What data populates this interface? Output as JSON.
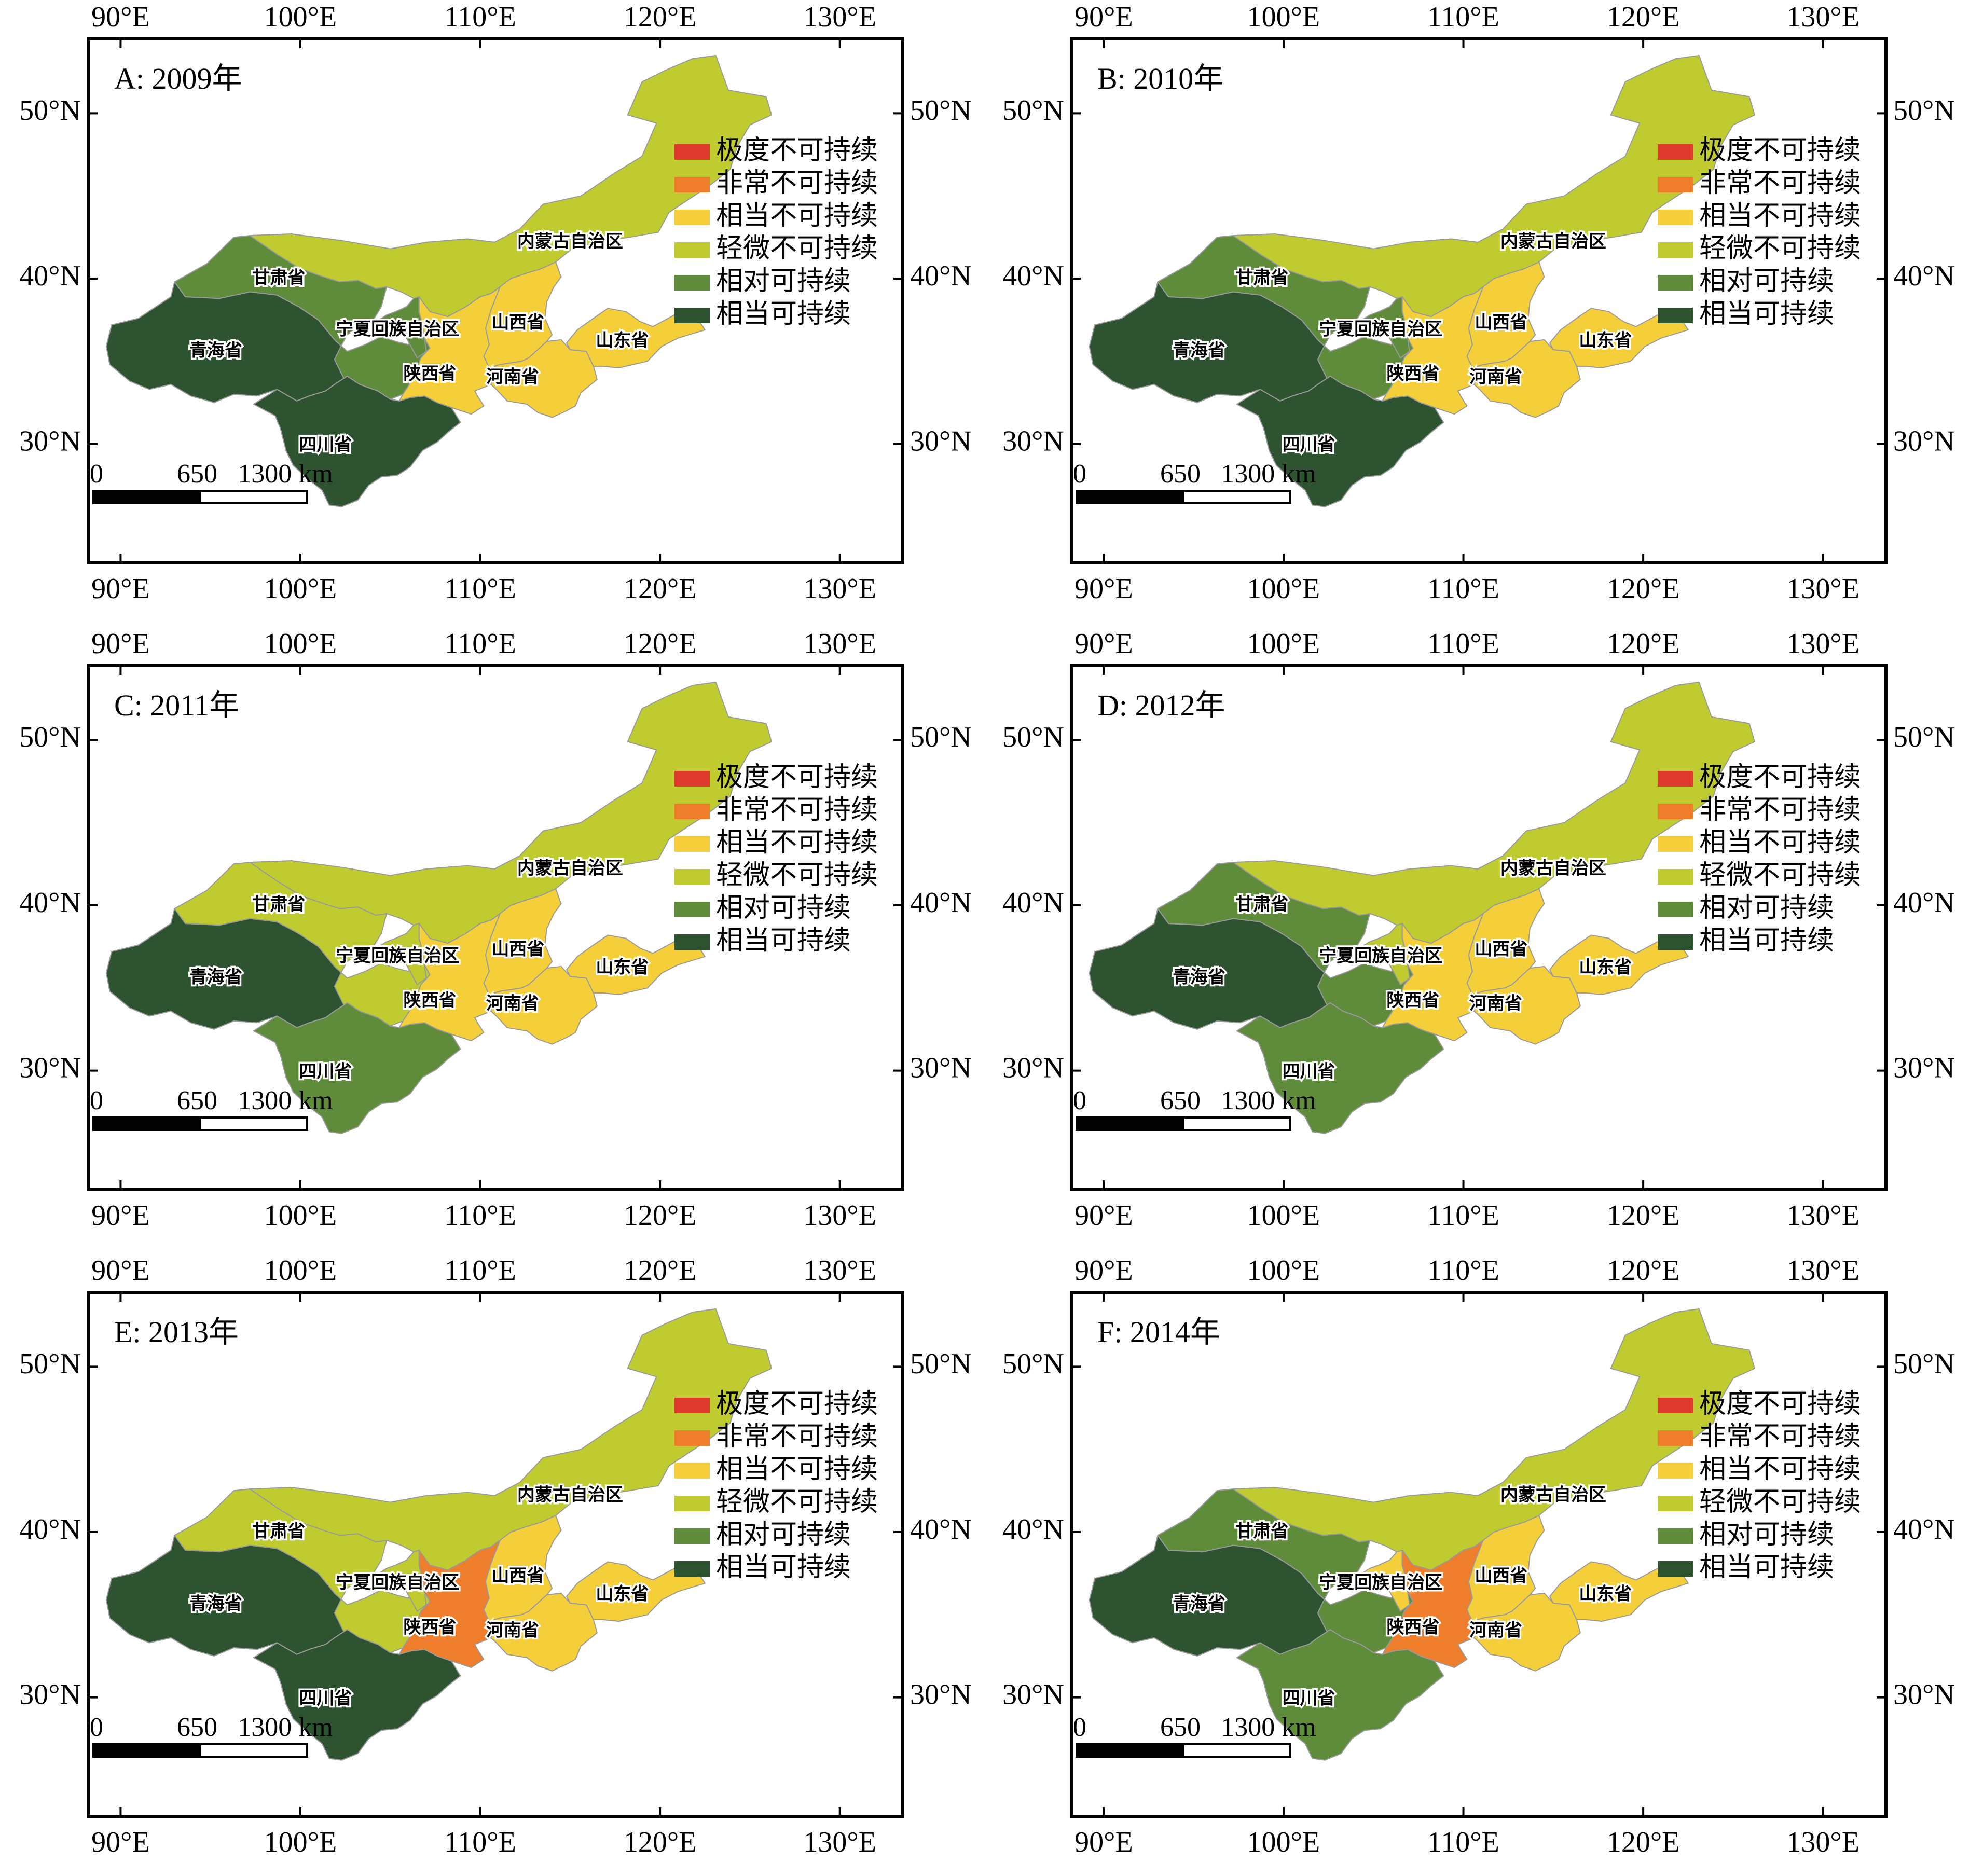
{
  "legend": {
    "items": [
      {
        "label": "极度不可持续",
        "color": "#e03a2f"
      },
      {
        "label": "非常不可持续",
        "color": "#ee7d2c"
      },
      {
        "label": "相当不可持续",
        "color": "#f5cf3a"
      },
      {
        "label": "轻微不可持续",
        "color": "#bfcb2e"
      },
      {
        "label": "相对可持续",
        "color": "#5e8c3a"
      },
      {
        "label": "相当可持续",
        "color": "#2e5330"
      }
    ]
  },
  "scalebar": {
    "labels": [
      "0",
      "650",
      "1300 km"
    ]
  },
  "axes": {
    "lon_labels": [
      "90°E",
      "100°E",
      "110°E",
      "120°E",
      "130°E"
    ],
    "lat_labels": [
      "50°N",
      "40°N",
      "30°N"
    ]
  },
  "province_names": {
    "neimenggu": "内蒙古自治区",
    "gansu": "甘肃省",
    "qinghai": "青海省",
    "ningxia": "宁夏回族自治区",
    "shanxi": "山西省",
    "shaanxi": "陕西省",
    "henan": "河南省",
    "shandong": "山东省",
    "sichuan": "四川省"
  },
  "panels": [
    {
      "title": "A: 2009年",
      "levels": {
        "neimenggu": 3,
        "gansu": 4,
        "qinghai": 5,
        "ningxia": 4,
        "shanxi": 2,
        "shaanxi": 2,
        "henan": 2,
        "shandong": 2,
        "sichuan": 5
      }
    },
    {
      "title": "B: 2010年",
      "levels": {
        "neimenggu": 3,
        "gansu": 4,
        "qinghai": 5,
        "ningxia": 4,
        "shanxi": 2,
        "shaanxi": 2,
        "henan": 2,
        "shandong": 2,
        "sichuan": 5
      }
    },
    {
      "title": "C: 2011年",
      "levels": {
        "neimenggu": 3,
        "gansu": 3,
        "qinghai": 5,
        "ningxia": 3,
        "shanxi": 2,
        "shaanxi": 2,
        "henan": 2,
        "shandong": 2,
        "sichuan": 4
      }
    },
    {
      "title": "D: 2012年",
      "levels": {
        "neimenggu": 3,
        "gansu": 4,
        "qinghai": 5,
        "ningxia": 3,
        "shanxi": 2,
        "shaanxi": 2,
        "henan": 2,
        "shandong": 2,
        "sichuan": 4
      }
    },
    {
      "title": "E: 2013年",
      "levels": {
        "neimenggu": 3,
        "gansu": 3,
        "qinghai": 5,
        "ningxia": 3,
        "shanxi": 2,
        "shaanxi": 1,
        "henan": 2,
        "shandong": 2,
        "sichuan": 5
      }
    },
    {
      "title": "F: 2014年",
      "levels": {
        "neimenggu": 3,
        "gansu": 4,
        "qinghai": 5,
        "ningxia": 2,
        "shanxi": 2,
        "shaanxi": 1,
        "henan": 2,
        "shandong": 2,
        "sichuan": 4
      }
    }
  ]
}
